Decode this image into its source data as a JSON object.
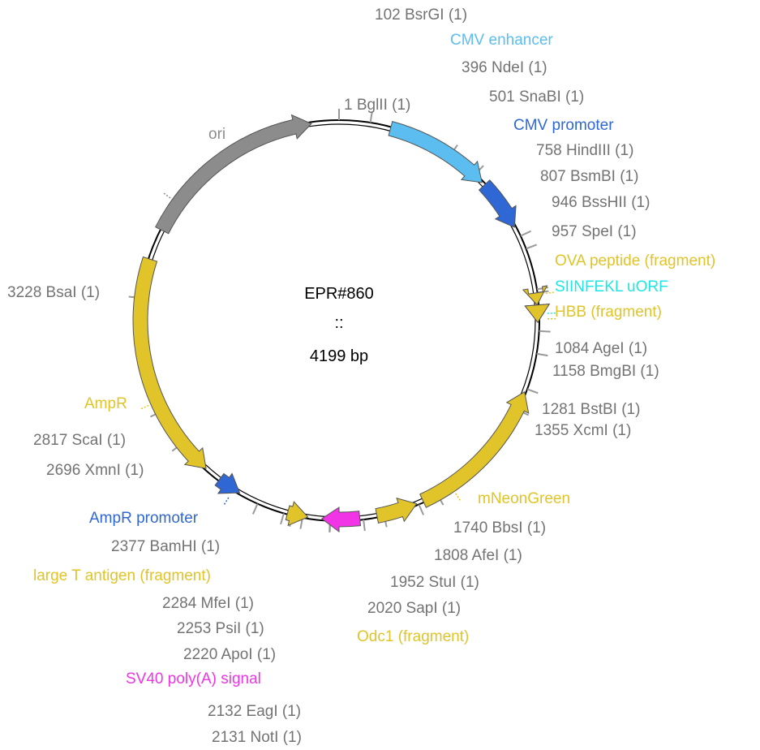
{
  "plasmid": {
    "name": "EPR#860",
    "separator": "::",
    "size_label": "4199 bp"
  },
  "colors": {
    "backbone": "#000000",
    "site_label": "#737373",
    "tick": "#999999"
  },
  "features": [
    {
      "name": "CMV enhancer",
      "color": "#5bbdf0",
      "shape": "arrow",
      "direction": "cw"
    },
    {
      "name": "CMV promoter",
      "color": "#2f67d4",
      "shape": "arrow",
      "direction": "cw"
    },
    {
      "name": "OVA peptide (fragment)",
      "color": "#e0c42a",
      "shape": "arrow",
      "direction": "cw"
    },
    {
      "name": "SIINFEKL uORF",
      "color": "#1fe6e6",
      "shape": "arrow",
      "direction": "cw"
    },
    {
      "name": "HBB (fragment)",
      "color": "#e0c42a",
      "shape": "arrow",
      "direction": "cw"
    },
    {
      "name": "mNeonGreen",
      "color": "#e0c42a",
      "shape": "arrow",
      "direction": "ccw"
    },
    {
      "name": "Odc1 (fragment)",
      "color": "#e0c42a",
      "shape": "arrow",
      "direction": "ccw"
    },
    {
      "name": "SV40 poly(A) signal",
      "color": "#f034e6",
      "shape": "arrow",
      "direction": "cw"
    },
    {
      "name": "large T antigen (fragment)",
      "color": "#e0c42a",
      "shape": "arrow",
      "direction": "ccw"
    },
    {
      "name": "AmpR promoter",
      "color": "#2f67d4",
      "shape": "arrow",
      "direction": "ccw"
    },
    {
      "name": "AmpR",
      "color": "#e0c42a",
      "shape": "arrow",
      "direction": "ccw"
    },
    {
      "name": "ori",
      "color": "#8c8c8c",
      "shape": "arrow",
      "direction": "cw"
    }
  ],
  "sites": [
    {
      "label": "1 BglII (1)"
    },
    {
      "label": "102 BsrGI (1)"
    },
    {
      "label": "396 NdeI (1)"
    },
    {
      "label": "501 SnaBI (1)"
    },
    {
      "label": "758 HindIII (1)"
    },
    {
      "label": "807 BsmBI (1)"
    },
    {
      "label": "946 BssHII (1)"
    },
    {
      "label": "957 SpeI (1)"
    },
    {
      "label": "1084 AgeI (1)"
    },
    {
      "label": "1158 BmgBI (1)"
    },
    {
      "label": "1281 BstBI (1)"
    },
    {
      "label": "1355 XcmI (1)"
    },
    {
      "label": "1740 BbsI (1)"
    },
    {
      "label": "1808 AfeI (1)"
    },
    {
      "label": "1952 StuI (1)"
    },
    {
      "label": "2020 SapI (1)"
    },
    {
      "label": "2131 NotI (1)"
    },
    {
      "label": "2132 EagI (1)"
    },
    {
      "label": "2220 ApoI (1)"
    },
    {
      "label": "2253 PsiI (1)"
    },
    {
      "label": "2284 MfeI (1)"
    },
    {
      "label": "2377 BamHI (1)"
    },
    {
      "label": "2696 XmnI (1)"
    },
    {
      "label": "2817 ScaI (1)"
    },
    {
      "label": "3228 BsaI (1)"
    }
  ]
}
